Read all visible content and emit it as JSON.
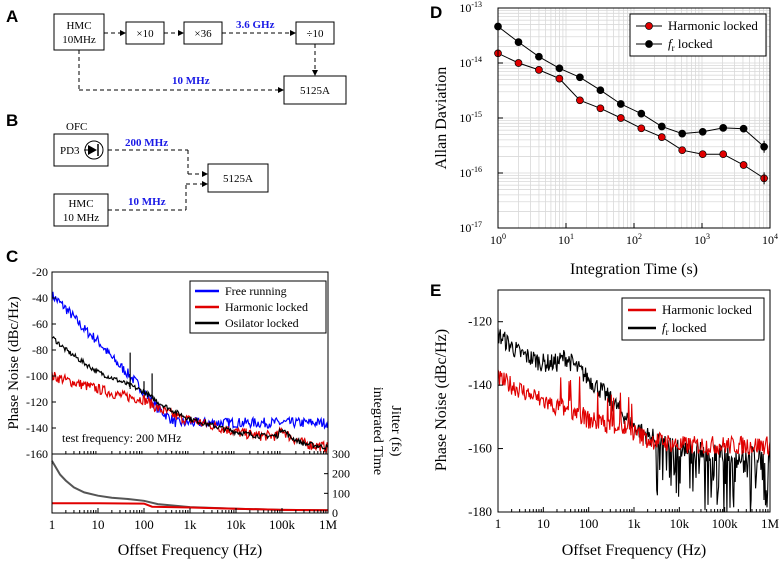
{
  "panels": {
    "A": {
      "letter": "A",
      "boxes": {
        "hmc": [
          "HMC",
          "10MHz"
        ],
        "x10": "×10",
        "x36": "×36",
        "div10": "÷10",
        "counter": "5125A"
      },
      "labels": {
        "ghz": "3.6 GHz",
        "mhz": "10 MHz"
      }
    },
    "B": {
      "letter": "B",
      "ofc": "OFC",
      "pd": "PD3",
      "hmc": [
        "HMC",
        "10 MHz"
      ],
      "counter": "5125A",
      "labels": {
        "ofc_freq": "200 MHz",
        "hmc_freq": "10 MHz"
      }
    },
    "C": {
      "letter": "C",
      "note": "test frequency: 200 MHz"
    },
    "D": {
      "letter": "D"
    },
    "E": {
      "letter": "E"
    }
  },
  "colors": {
    "black": "#000000",
    "red": "#e00000",
    "blue": "#0000ff",
    "gray": "#555555",
    "label_blue": "#1a1ae6",
    "grid": "#d9d9d9"
  },
  "chart_data": [
    {
      "id": "C-top",
      "type": "line",
      "xscale": "log",
      "xlim": [
        1,
        1000000
      ],
      "ylim": [
        -160,
        -20
      ],
      "ylabel": "Phase Noise (dBc/Hz)",
      "yticks": [
        -160,
        -140,
        -120,
        -100,
        -80,
        -60,
        -40,
        -20
      ],
      "ytick_labels": [
        "-160",
        "-140",
        "-120",
        "-100",
        "-80",
        "-60",
        "-40",
        "-20"
      ],
      "legend": "top-right",
      "series": [
        {
          "name": "Free running",
          "color": "#0000ff",
          "x": [
            1,
            2,
            3,
            5,
            10,
            20,
            50,
            100,
            200,
            500
          ],
          "y": [
            -38,
            -48,
            -55,
            -64,
            -73,
            -86,
            -100,
            -112,
            -125,
            -136
          ],
          "noise": 4
        },
        {
          "name": "Harmonic locked",
          "color": "#e00000",
          "x": [
            1,
            3,
            10,
            30,
            100,
            200,
            500,
            1000,
            3000,
            10000,
            30000,
            80000,
            100000,
            150000,
            300000,
            1000000
          ],
          "y": [
            -100,
            -105,
            -110,
            -115,
            -118,
            -125,
            -131,
            -134,
            -138,
            -143,
            -146,
            -146,
            -141,
            -147,
            -152,
            -155
          ],
          "noise": 4
        },
        {
          "name": "Osilator locked",
          "color": "#000000",
          "x": [
            1,
            2,
            5,
            10,
            30,
            100,
            200,
            500,
            1000,
            3000,
            10000,
            30000,
            80000,
            100000,
            150000,
            300000,
            1000000
          ],
          "y": [
            -70,
            -80,
            -90,
            -97,
            -104,
            -112,
            -120,
            -128,
            -133,
            -138,
            -143,
            -146,
            -146,
            -140,
            -147,
            -152,
            -155
          ],
          "noise": 2
        }
      ]
    },
    {
      "id": "C-bottom",
      "type": "line",
      "xscale": "log",
      "xlim": [
        1,
        1000000
      ],
      "ylim": [
        0,
        300
      ],
      "xlabel": "Offset Frequency (Hz)",
      "ylabel": "integrated Time Jitter (fs)",
      "xtick_labels": [
        "1",
        "10",
        "100",
        "1k",
        "10k",
        "100k",
        "1M"
      ],
      "yticks": [
        0,
        100,
        200,
        300
      ],
      "series": [
        {
          "name": "Osilator locked jitter",
          "color": "#555555",
          "x": [
            1,
            1.5,
            2,
            3,
            5,
            10,
            20,
            50,
            100,
            200,
            1000,
            10000,
            100000,
            1000000
          ],
          "y": [
            265,
            195,
            165,
            130,
            105,
            88,
            78,
            70,
            62,
            45,
            30,
            22,
            16,
            14
          ]
        },
        {
          "name": "Harmonic locked jitter",
          "color": "#e00000",
          "x": [
            1,
            10,
            100,
            150,
            1000,
            10000,
            100000,
            1000000
          ],
          "y": [
            50,
            50,
            48,
            32,
            28,
            22,
            16,
            14
          ]
        }
      ]
    },
    {
      "id": "D",
      "type": "scatter",
      "xscale": "log",
      "yscale": "log",
      "xlim": [
        1,
        10000
      ],
      "ylim": [
        1e-17,
        1e-13
      ],
      "xlabel": "Integration Time (s)",
      "ylabel": "Allan Daviation",
      "xtick_labels": [
        "10^0",
        "10^1",
        "10^2",
        "10^3",
        "10^4"
      ],
      "ytick_labels": [
        "10^-13",
        "10^-14",
        "10^-15",
        "10^-16",
        "10^-17"
      ],
      "legend": "top-right",
      "series": [
        {
          "name": "Harmonic locked",
          "color": "#e00000",
          "x": [
            1,
            2,
            4,
            8,
            16,
            32,
            64,
            128,
            256,
            512,
            1024,
            2048,
            4096,
            8192
          ],
          "y": [
            1.5e-14,
            1e-14,
            7.5e-15,
            5.2e-15,
            2.1e-15,
            1.5e-15,
            1e-15,
            6.5e-16,
            4.5e-16,
            2.6e-16,
            2.2e-16,
            2.2e-16,
            1.4e-16,
            8e-17
          ]
        },
        {
          "name": "f_r locked",
          "name_main": "f",
          "name_sub": "r",
          "name_tail": " locked",
          "color": "#000000",
          "x": [
            1,
            2,
            4,
            8,
            16,
            32,
            64,
            128,
            256,
            512,
            1024,
            2048,
            4096,
            8192
          ],
          "y": [
            4.6e-14,
            2.4e-14,
            1.3e-14,
            8e-15,
            5.5e-15,
            3.2e-15,
            1.8e-15,
            1.2e-15,
            7e-16,
            5.2e-16,
            5.6e-16,
            6.6e-16,
            6.4e-16,
            3e-16
          ]
        }
      ]
    },
    {
      "id": "E",
      "type": "line",
      "xscale": "log",
      "xlim": [
        1,
        1000000
      ],
      "ylim": [
        -180,
        -110
      ],
      "xlabel": "Offset Frequency (Hz)",
      "ylabel": "Phase Noise (dBc/Hz)",
      "xtick_labels": [
        "1",
        "10",
        "100",
        "1k",
        "10k",
        "100k",
        "1M"
      ],
      "yticks": [
        -180,
        -160,
        -140,
        -120
      ],
      "ytick_labels": [
        "-180",
        "-160",
        "-140",
        "-120"
      ],
      "legend": "top-right",
      "series": [
        {
          "name": "Harmonic locked",
          "color": "#e00000",
          "x": [
            1,
            2,
            5,
            10,
            20,
            50,
            100,
            200,
            500,
            1000,
            2000,
            5000,
            10000,
            100000,
            1000000
          ],
          "y": [
            -138,
            -140,
            -143,
            -145,
            -147,
            -148,
            -151,
            -152,
            -153,
            -155,
            -157,
            -158,
            -159,
            -159,
            -159
          ],
          "noise": 3
        },
        {
          "name": "f_r locked",
          "name_main": "f",
          "name_sub": "r",
          "name_tail": " locked",
          "color": "#000000",
          "x": [
            1,
            3,
            10,
            20,
            30,
            50,
            100,
            200,
            500,
            1000,
            2000,
            5000,
            10000,
            100000,
            1000000
          ],
          "y": [
            -124,
            -130,
            -133,
            -133,
            -131,
            -134,
            -138,
            -142,
            -148,
            -153,
            -156,
            -158,
            -160,
            -162,
            -162
          ],
          "noise": 3
        }
      ]
    }
  ]
}
